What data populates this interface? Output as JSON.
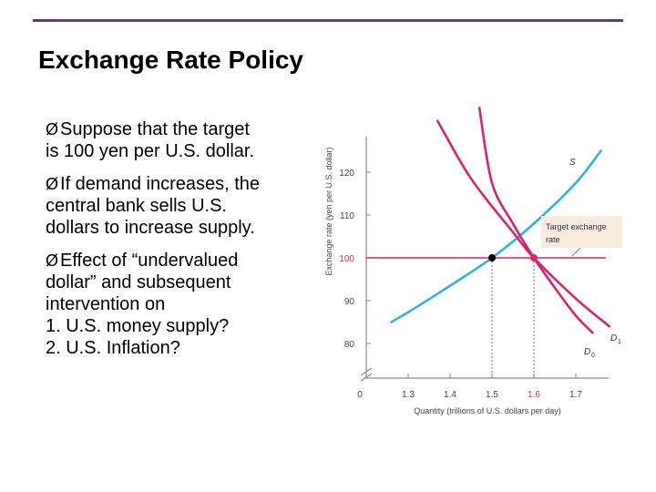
{
  "slide": {
    "title": "Exchange Rate Policy",
    "bullet_marker": "Ø",
    "bullets": [
      {
        "lines": [
          "Suppose that the target",
          "is 100 yen per U.S. dollar."
        ]
      },
      {
        "lines": [
          "If demand increases, the",
          "central bank sells U.S.",
          "dollars to increase supply."
        ]
      },
      {
        "lines": [
          "Effect of “undervalued",
          "dollar” and subsequent",
          "intervention on",
          "1. U.S. money supply?",
          "2. U.S. Inflation?"
        ]
      }
    ]
  },
  "chart_data": {
    "type": "line",
    "xlabel": "Quantity (trillions of U.S. dollars per day)",
    "ylabel": "Exchange rate (yen per U.S. dollar)",
    "x_ticks": [
      "0",
      "1.3",
      "1.4",
      "1.5",
      "1.6",
      "1.7"
    ],
    "y_ticks": [
      "80",
      "90",
      "100",
      "110",
      "120"
    ],
    "xlim": [
      1.2,
      1.8
    ],
    "ylim": [
      75,
      130
    ],
    "axis_break": true,
    "series": [
      {
        "name": "S",
        "color": "#d6246e",
        "x": [
          1.47,
          1.5,
          1.55,
          1.6,
          1.65,
          1.7,
          1.74
        ],
        "y": [
          135,
          117.5,
          108,
          100,
          93,
          86.5,
          82.5
        ]
      },
      {
        "name": "D0",
        "color": "#2fb3de",
        "x": [
          1.26,
          1.32,
          1.4,
          1.5,
          1.6,
          1.7,
          1.76
        ],
        "y": [
          85,
          88.5,
          93.5,
          100,
          108,
          117.5,
          125
        ]
      },
      {
        "name": "D1",
        "color": "#d6246e",
        "x": [
          1.37,
          1.45,
          1.55,
          1.6,
          1.7,
          1.78
        ],
        "y": [
          132,
          118.5,
          106,
          100,
          90.5,
          84
        ]
      }
    ],
    "curve_labels": {
      "S": "S",
      "D0": "D",
      "D0_sub": "0",
      "D1": "D",
      "D1_sub": "1"
    },
    "target": {
      "value": 100,
      "label_line1": "Target exchange",
      "label_line2": "rate",
      "color": "#d6246e"
    },
    "equilibria": [
      {
        "x": 1.5,
        "y": 100,
        "color": "#000000"
      },
      {
        "x": 1.6,
        "y": 100,
        "color": "#d6246e"
      }
    ],
    "tick_highlight": {
      "1.6": "#d6246e",
      "100": "#d6246e"
    },
    "grid": false
  }
}
